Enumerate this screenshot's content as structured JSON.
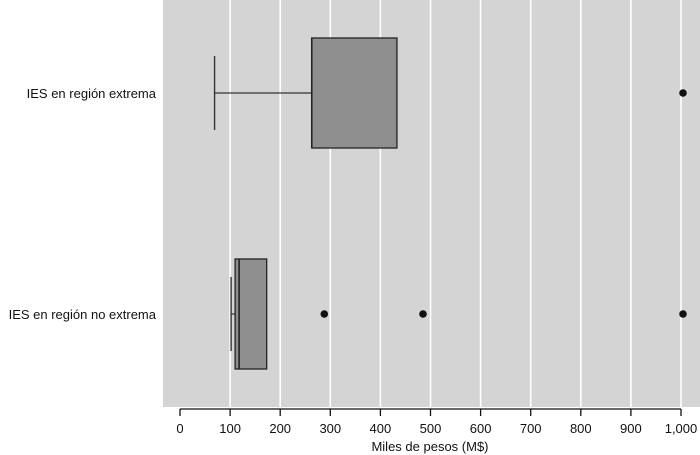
{
  "chart_data": {
    "type": "boxplot",
    "title": "",
    "xlabel": "Miles de pesos (M$)",
    "ylabel": "",
    "xlim": [
      0,
      1000
    ],
    "xticks": [
      0,
      100,
      200,
      300,
      400,
      500,
      600,
      700,
      800,
      900,
      1000
    ],
    "xtick_labels": [
      "0",
      "100",
      "200",
      "300",
      "400",
      "500",
      "600",
      "700",
      "800",
      "900",
      "1,000"
    ],
    "grid": true,
    "orientation": "horizontal",
    "colors": {
      "background": "#d4d4d4",
      "box": "#8f8f8f",
      "grid": "#ffffff"
    },
    "series": [
      {
        "name": "IES en región extrema",
        "whisker_low": 69,
        "q1": 263,
        "median": 263,
        "q3": 433,
        "whisker_high": 433,
        "outliers": [
          1004
        ]
      },
      {
        "name": "IES en región no extrema",
        "whisker_low": 102,
        "q1": 110,
        "median": 118,
        "q3": 173,
        "whisker_high": 173,
        "outliers": [
          288,
          485,
          1004
        ]
      }
    ]
  }
}
